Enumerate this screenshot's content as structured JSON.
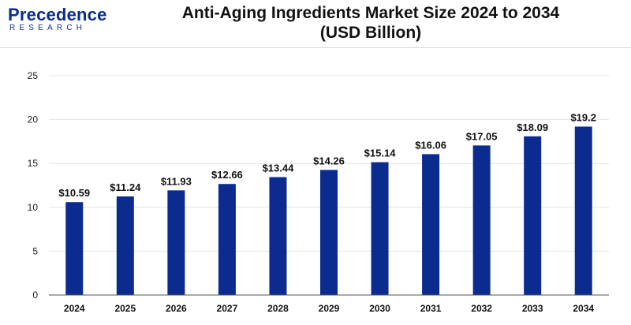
{
  "logo": {
    "main": "Precedence",
    "sub": "RESEARCH"
  },
  "colors": {
    "bar": "#0b2b8f",
    "logo": "#0b2e8a",
    "grid": "#e4e4e4"
  },
  "chart_data": {
    "type": "bar",
    "title": "Anti-Aging Ingredients Market Size 2024 to 2034",
    "subtitle": "(USD Billion)",
    "categories": [
      "2024",
      "2025",
      "2026",
      "2027",
      "2028",
      "2029",
      "2030",
      "2031",
      "2032",
      "2033",
      "2034"
    ],
    "values": [
      10.59,
      11.24,
      11.93,
      12.66,
      13.44,
      14.26,
      15.14,
      16.06,
      17.05,
      18.09,
      19.2
    ],
    "data_labels": [
      "$10.59",
      "$11.24",
      "$11.93",
      "$12.66",
      "$13.44",
      "$14.26",
      "$15.14",
      "$16.06",
      "$17.05",
      "$18.09",
      "$19.2"
    ],
    "ylim": [
      0,
      25
    ],
    "yticks": [
      "0",
      "5",
      "10",
      "15",
      "20",
      "25"
    ],
    "grid": true,
    "legend": "none"
  }
}
